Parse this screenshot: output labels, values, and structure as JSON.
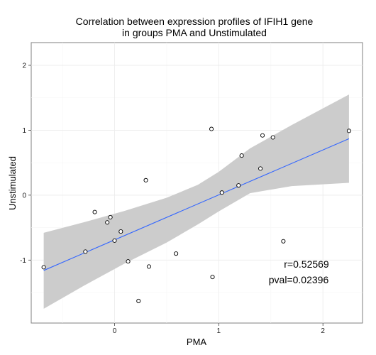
{
  "chart_data": {
    "type": "scatter",
    "title": [
      "Correlation between expression profiles of IFIH1 gene",
      "in groups PMA and Unstimulated"
    ],
    "xlabel": "PMA",
    "ylabel": "Unstimulated",
    "xlim": [
      -0.8,
      2.38
    ],
    "ylim": [
      -1.97,
      2.35
    ],
    "x_ticks": [
      0,
      1,
      2
    ],
    "x_tick_labels": [
      "0",
      "1",
      "2"
    ],
    "y_ticks": [
      -1,
      0,
      1,
      2
    ],
    "y_tick_labels": [
      "-1",
      "0",
      "1",
      "2"
    ],
    "grid": true,
    "points": [
      {
        "x": -0.68,
        "y": -1.11
      },
      {
        "x": -0.28,
        "y": -0.87
      },
      {
        "x": -0.19,
        "y": -0.26
      },
      {
        "x": -0.07,
        "y": -0.42
      },
      {
        "x": -0.04,
        "y": -0.34
      },
      {
        "x": 0.0,
        "y": -0.7
      },
      {
        "x": 0.06,
        "y": -0.56
      },
      {
        "x": 0.13,
        "y": -1.02
      },
      {
        "x": 0.23,
        "y": -1.63
      },
      {
        "x": 0.3,
        "y": 0.23
      },
      {
        "x": 0.33,
        "y": -1.1
      },
      {
        "x": 0.59,
        "y": -0.9
      },
      {
        "x": 0.93,
        "y": 1.02
      },
      {
        "x": 0.94,
        "y": -1.26
      },
      {
        "x": 1.03,
        "y": 0.04
      },
      {
        "x": 1.19,
        "y": 0.15
      },
      {
        "x": 1.22,
        "y": 0.61
      },
      {
        "x": 1.4,
        "y": 0.41
      },
      {
        "x": 1.42,
        "y": 0.92
      },
      {
        "x": 1.52,
        "y": 0.89
      },
      {
        "x": 1.62,
        "y": -0.71
      },
      {
        "x": 2.25,
        "y": 0.99
      }
    ],
    "fit": {
      "x": [
        -0.68,
        2.25
      ],
      "y": [
        -1.16,
        0.87
      ],
      "color": "#3366FF"
    },
    "confidence_band": {
      "x": [
        -0.68,
        -0.3,
        0.1,
        0.5,
        0.8,
        1.0,
        1.3,
        1.7,
        2.25
      ],
      "upper": [
        -0.58,
        -0.42,
        -0.24,
        -0.04,
        0.16,
        0.36,
        0.72,
        1.08,
        1.55
      ],
      "lower": [
        -1.75,
        -1.4,
        -1.05,
        -0.73,
        -0.45,
        -0.25,
        0.03,
        0.14,
        0.19
      ],
      "color": "#cccccc"
    },
    "annotations": [
      "r=0.52569",
      "pval=0.02396"
    ]
  }
}
